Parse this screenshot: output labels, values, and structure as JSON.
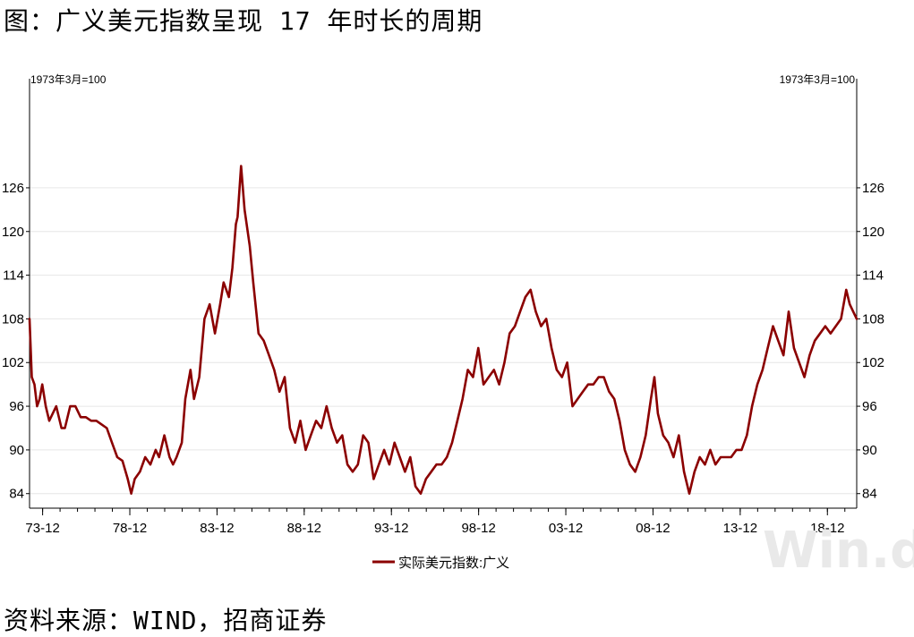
{
  "title": "图：广义美元指数呈现 17 年时长的周期",
  "source": "资料来源：WIND，招商证券",
  "watermark": "Win.d",
  "chart_data": {
    "type": "line",
    "unit_left": "1973年3月=100",
    "unit_right": "1973年3月=100",
    "ylim": [
      82,
      140
    ],
    "yticks": [
      84,
      90,
      96,
      102,
      108,
      114,
      120,
      126
    ],
    "xlim": [
      1973.17,
      2020.6
    ],
    "xtick_labels": [
      "73-12",
      "78-12",
      "83-12",
      "88-12",
      "93-12",
      "98-12",
      "03-12",
      "08-12",
      "13-12",
      "18-12"
    ],
    "xtick_values": [
      1973.92,
      1978.92,
      1983.92,
      1988.92,
      1993.92,
      1998.92,
      2003.92,
      2008.92,
      2013.92,
      2018.92
    ],
    "grid": true,
    "legend_position": "bottom",
    "series": [
      {
        "name": "实际美元指数:广义",
        "color": "#8b0000",
        "x": [
          1973.17,
          1973.3,
          1973.45,
          1973.6,
          1973.75,
          1973.9,
          1974.1,
          1974.3,
          1974.5,
          1974.7,
          1975.0,
          1975.2,
          1975.5,
          1975.8,
          1976.1,
          1976.4,
          1976.7,
          1977.0,
          1977.3,
          1977.6,
          1977.9,
          1978.2,
          1978.5,
          1978.8,
          1979.0,
          1979.2,
          1979.5,
          1979.8,
          1980.1,
          1980.4,
          1980.6,
          1980.9,
          1981.2,
          1981.4,
          1981.6,
          1981.9,
          1982.1,
          1982.4,
          1982.6,
          1982.9,
          1983.2,
          1983.5,
          1983.8,
          1984.1,
          1984.3,
          1984.6,
          1984.8,
          1985.0,
          1985.1,
          1985.3,
          1985.5,
          1985.8,
          1986.0,
          1986.3,
          1986.6,
          1986.9,
          1987.2,
          1987.5,
          1987.8,
          1988.1,
          1988.4,
          1988.7,
          1989.0,
          1989.3,
          1989.6,
          1989.9,
          1990.2,
          1990.5,
          1990.8,
          1991.1,
          1991.4,
          1991.7,
          1992.0,
          1992.3,
          1992.6,
          1992.9,
          1993.2,
          1993.5,
          1993.8,
          1994.1,
          1994.4,
          1994.7,
          1995.0,
          1995.3,
          1995.6,
          1995.9,
          1996.2,
          1996.5,
          1996.8,
          1997.1,
          1997.4,
          1997.7,
          1998.0,
          1998.3,
          1998.6,
          1998.9,
          1999.2,
          1999.5,
          1999.8,
          2000.1,
          2000.4,
          2000.7,
          2001.0,
          2001.3,
          2001.6,
          2001.9,
          2002.2,
          2002.5,
          2002.8,
          2003.1,
          2003.4,
          2003.7,
          2004.0,
          2004.3,
          2004.6,
          2004.9,
          2005.2,
          2005.5,
          2005.8,
          2006.1,
          2006.4,
          2006.7,
          2007.0,
          2007.3,
          2007.6,
          2007.9,
          2008.2,
          2008.5,
          2008.8,
          2009.0,
          2009.2,
          2009.5,
          2009.8,
          2010.1,
          2010.4,
          2010.7,
          2011.0,
          2011.3,
          2011.6,
          2011.9,
          2012.2,
          2012.5,
          2012.8,
          2013.1,
          2013.4,
          2013.7,
          2014.0,
          2014.3,
          2014.6,
          2014.9,
          2015.2,
          2015.5,
          2015.8,
          2016.1,
          2016.4,
          2016.7,
          2017.0,
          2017.3,
          2017.6,
          2017.9,
          2018.2,
          2018.5,
          2018.8,
          2019.1,
          2019.4,
          2019.7,
          2020.0,
          2020.2,
          2020.4,
          2020.6
        ],
        "y": [
          108,
          100,
          99,
          96,
          97,
          99,
          96,
          94,
          95,
          96,
          93,
          93,
          96,
          96,
          94.5,
          94.5,
          94,
          94,
          93.5,
          93,
          91,
          89,
          88.5,
          86,
          84,
          86,
          87,
          89,
          88,
          90,
          89,
          92,
          89,
          88,
          89,
          91,
          97,
          101,
          97,
          100,
          108,
          110,
          106,
          110,
          113,
          111,
          115,
          121,
          122,
          129,
          123,
          118,
          113,
          106,
          105,
          103,
          101,
          98,
          100,
          93,
          91,
          94,
          90,
          92,
          94,
          93,
          96,
          93,
          91,
          92,
          88,
          87,
          88,
          92,
          91,
          86,
          88,
          90,
          88,
          91,
          89,
          87,
          89,
          85,
          84,
          86,
          87,
          88,
          88,
          89,
          91,
          94,
          97,
          101,
          100,
          104,
          99,
          100,
          101,
          99,
          102,
          106,
          107,
          109,
          111,
          112,
          109,
          107,
          108,
          104,
          101,
          100,
          102,
          96,
          97,
          98,
          99,
          99,
          100,
          100,
          98,
          97,
          94,
          90,
          88,
          87,
          89,
          92,
          97,
          100,
          95,
          92,
          91,
          89,
          92,
          87,
          84,
          87,
          89,
          88,
          90,
          88,
          89,
          89,
          89,
          90,
          90,
          92,
          96,
          99,
          101,
          104,
          107,
          105,
          103,
          109,
          104,
          102,
          100,
          103,
          105,
          106,
          107,
          106,
          107,
          108,
          112,
          110,
          109,
          108
        ]
      }
    ]
  }
}
